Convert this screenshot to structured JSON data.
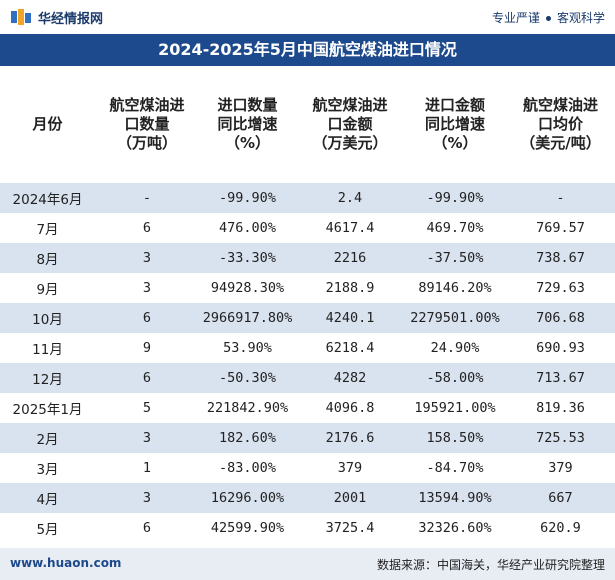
{
  "header": {
    "site_name": "华经情报网",
    "slogan_left": "专业严谨",
    "slogan_right": "客观科学"
  },
  "chart_data": {
    "type": "table",
    "title": "2024-2025年5月中国航空煤油进口情况",
    "columns": [
      "月份",
      "航空煤油进口数量（万吨）",
      "进口数量同比增速（%）",
      "航空煤油进口金额（万美元）",
      "进口金额同比增速（%）",
      "航空煤油进口均价（美元/吨）"
    ],
    "rows": [
      {
        "month": "2024年6月",
        "qty": "-",
        "qty_yoy": "-99.90%",
        "amt": "2.4",
        "amt_yoy": "-99.90%",
        "price": "-"
      },
      {
        "month": "7月",
        "qty": "6",
        "qty_yoy": "476.00%",
        "amt": "4617.4",
        "amt_yoy": "469.70%",
        "price": "769.57"
      },
      {
        "month": "8月",
        "qty": "3",
        "qty_yoy": "-33.30%",
        "amt": "2216",
        "amt_yoy": "-37.50%",
        "price": "738.67"
      },
      {
        "month": "9月",
        "qty": "3",
        "qty_yoy": "94928.30%",
        "amt": "2188.9",
        "amt_yoy": "89146.20%",
        "price": "729.63"
      },
      {
        "month": "10月",
        "qty": "6",
        "qty_yoy": "2966917.80%",
        "amt": "4240.1",
        "amt_yoy": "2279501.00%",
        "price": "706.68"
      },
      {
        "month": "11月",
        "qty": "9",
        "qty_yoy": "53.90%",
        "amt": "6218.4",
        "amt_yoy": "24.90%",
        "price": "690.93"
      },
      {
        "month": "12月",
        "qty": "6",
        "qty_yoy": "-50.30%",
        "amt": "4282",
        "amt_yoy": "-58.00%",
        "price": "713.67"
      },
      {
        "month": "2025年1月",
        "qty": "5",
        "qty_yoy": "221842.90%",
        "amt": "4096.8",
        "amt_yoy": "195921.00%",
        "price": "819.36"
      },
      {
        "month": "2月",
        "qty": "3",
        "qty_yoy": "182.60%",
        "amt": "2176.6",
        "amt_yoy": "158.50%",
        "price": "725.53"
      },
      {
        "month": "3月",
        "qty": "1",
        "qty_yoy": "-83.00%",
        "amt": "379",
        "amt_yoy": "-84.70%",
        "price": "379"
      },
      {
        "month": "4月",
        "qty": "3",
        "qty_yoy": "16296.00%",
        "amt": "2001",
        "amt_yoy": "13594.90%",
        "price": "667"
      },
      {
        "month": "5月",
        "qty": "6",
        "qty_yoy": "42599.90%",
        "amt": "3725.4",
        "amt_yoy": "32326.60%",
        "price": "620.9"
      }
    ],
    "negative_color": "#3d76c6",
    "alt_row_color": "#d9e2ef"
  },
  "footer": {
    "url": "www.huaon.com",
    "source": "数据来源：中国海关，华经产业研究院整理"
  }
}
